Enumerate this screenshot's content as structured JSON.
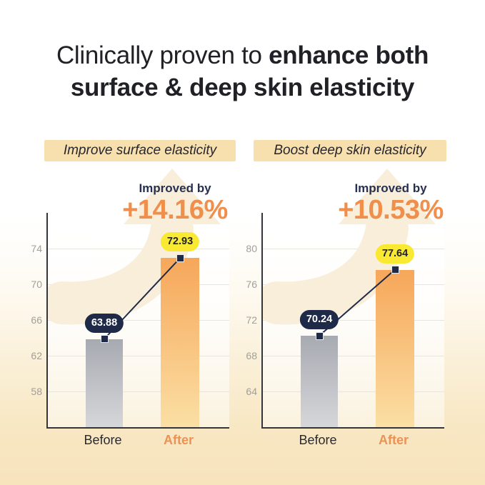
{
  "title": {
    "line1_regular": "Clinically proven to ",
    "line1_bold": "enhance both",
    "line2_bold": "surface & deep skin elasticity"
  },
  "chart_data": [
    {
      "type": "bar",
      "title": "Improve surface elasticity",
      "improved_by": "Improved by",
      "improvement": "+14.16%",
      "categories": [
        "Before",
        "After"
      ],
      "values": [
        63.88,
        72.93
      ],
      "value_labels": [
        "63.88",
        "72.93"
      ],
      "yticks": [
        74,
        70,
        66,
        62,
        58
      ],
      "ylim": [
        54,
        78
      ],
      "grid": true,
      "legend": "none"
    },
    {
      "type": "bar",
      "title": "Boost deep skin elasticity",
      "improved_by": "Improved by",
      "improvement": "+10.53%",
      "categories": [
        "Before",
        "After"
      ],
      "values": [
        70.24,
        77.64
      ],
      "value_labels": [
        "70.24",
        "77.64"
      ],
      "yticks": [
        80,
        76,
        72,
        68,
        64
      ],
      "ylim": [
        60,
        84
      ],
      "grid": true,
      "legend": "none"
    }
  ],
  "colors": {
    "accent_orange": "#ef8f4b",
    "navy": "#1e2a47",
    "pill_yellow": "#f9e933",
    "chip_bg": "#f8e0ae",
    "axis": "#35363c",
    "gridline": "#e7e5e0",
    "tick_label": "#a29f97",
    "bg_bottom": "#f7e4bd",
    "arrow_fill": "#f9eed9",
    "bar_gradients": [
      [
        "#a7aab1",
        "#d6d7da"
      ],
      [
        "#f6a75a",
        "#fbdfa4"
      ]
    ],
    "value_pills": [
      {
        "bg": "#1e2a47",
        "fg": "#ffffff"
      },
      {
        "bg": "#f9e933",
        "fg": "#20242c"
      }
    ],
    "category_colors": [
      "#2a2a2e",
      "#eb9254"
    ]
  }
}
